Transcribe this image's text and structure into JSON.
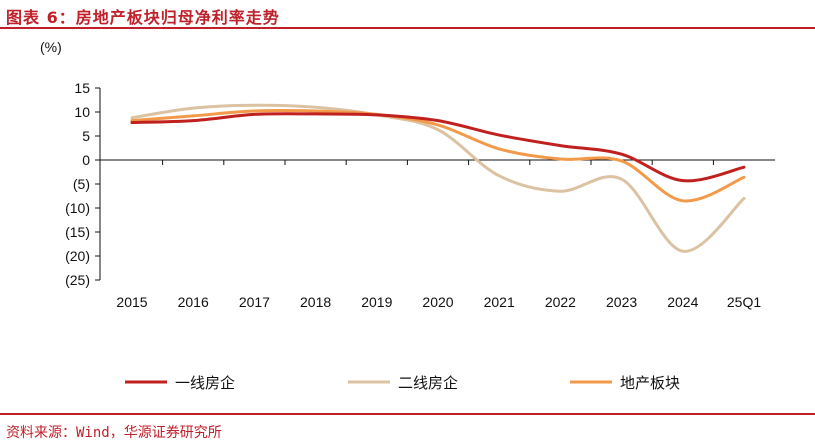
{
  "header": {
    "title": "图表 6：房地产板块归母净利率走势"
  },
  "footer": {
    "source": "资料来源：Wind，华源证券研究所"
  },
  "chart_data": {
    "type": "line",
    "ylabel": "(%)",
    "categories": [
      "2015",
      "2016",
      "2017",
      "2018",
      "2019",
      "2020",
      "2021",
      "2022",
      "2023",
      "2024",
      "25Q1"
    ],
    "y_tick_labels": [
      "15",
      "10",
      "5",
      "0",
      "(5)",
      "(10)",
      "(15)",
      "(20)",
      "(25)"
    ],
    "y_tick_values": [
      15,
      10,
      5,
      0,
      -5,
      -10,
      -15,
      -20,
      -25
    ],
    "ylim": [
      -25,
      15
    ],
    "grid": false,
    "legend_position": "bottom",
    "series": [
      {
        "name": "一线房企",
        "color": "#c0201e",
        "values": [
          7.8,
          8.2,
          9.5,
          9.6,
          9.4,
          8.2,
          5.2,
          3.0,
          1.2,
          -4.3,
          -1.5
        ]
      },
      {
        "name": "二线房企",
        "color": "#dbc2a2",
        "values": [
          8.8,
          10.8,
          11.4,
          11.0,
          9.4,
          6.3,
          -3.3,
          -6.5,
          -4.0,
          -19.0,
          -8.0
        ]
      },
      {
        "name": "地产板块",
        "color": "#f39a4a",
        "values": [
          8.2,
          9.2,
          10.2,
          10.2,
          9.5,
          7.3,
          2.3,
          0.2,
          -0.2,
          -8.5,
          -3.6
        ]
      }
    ]
  }
}
